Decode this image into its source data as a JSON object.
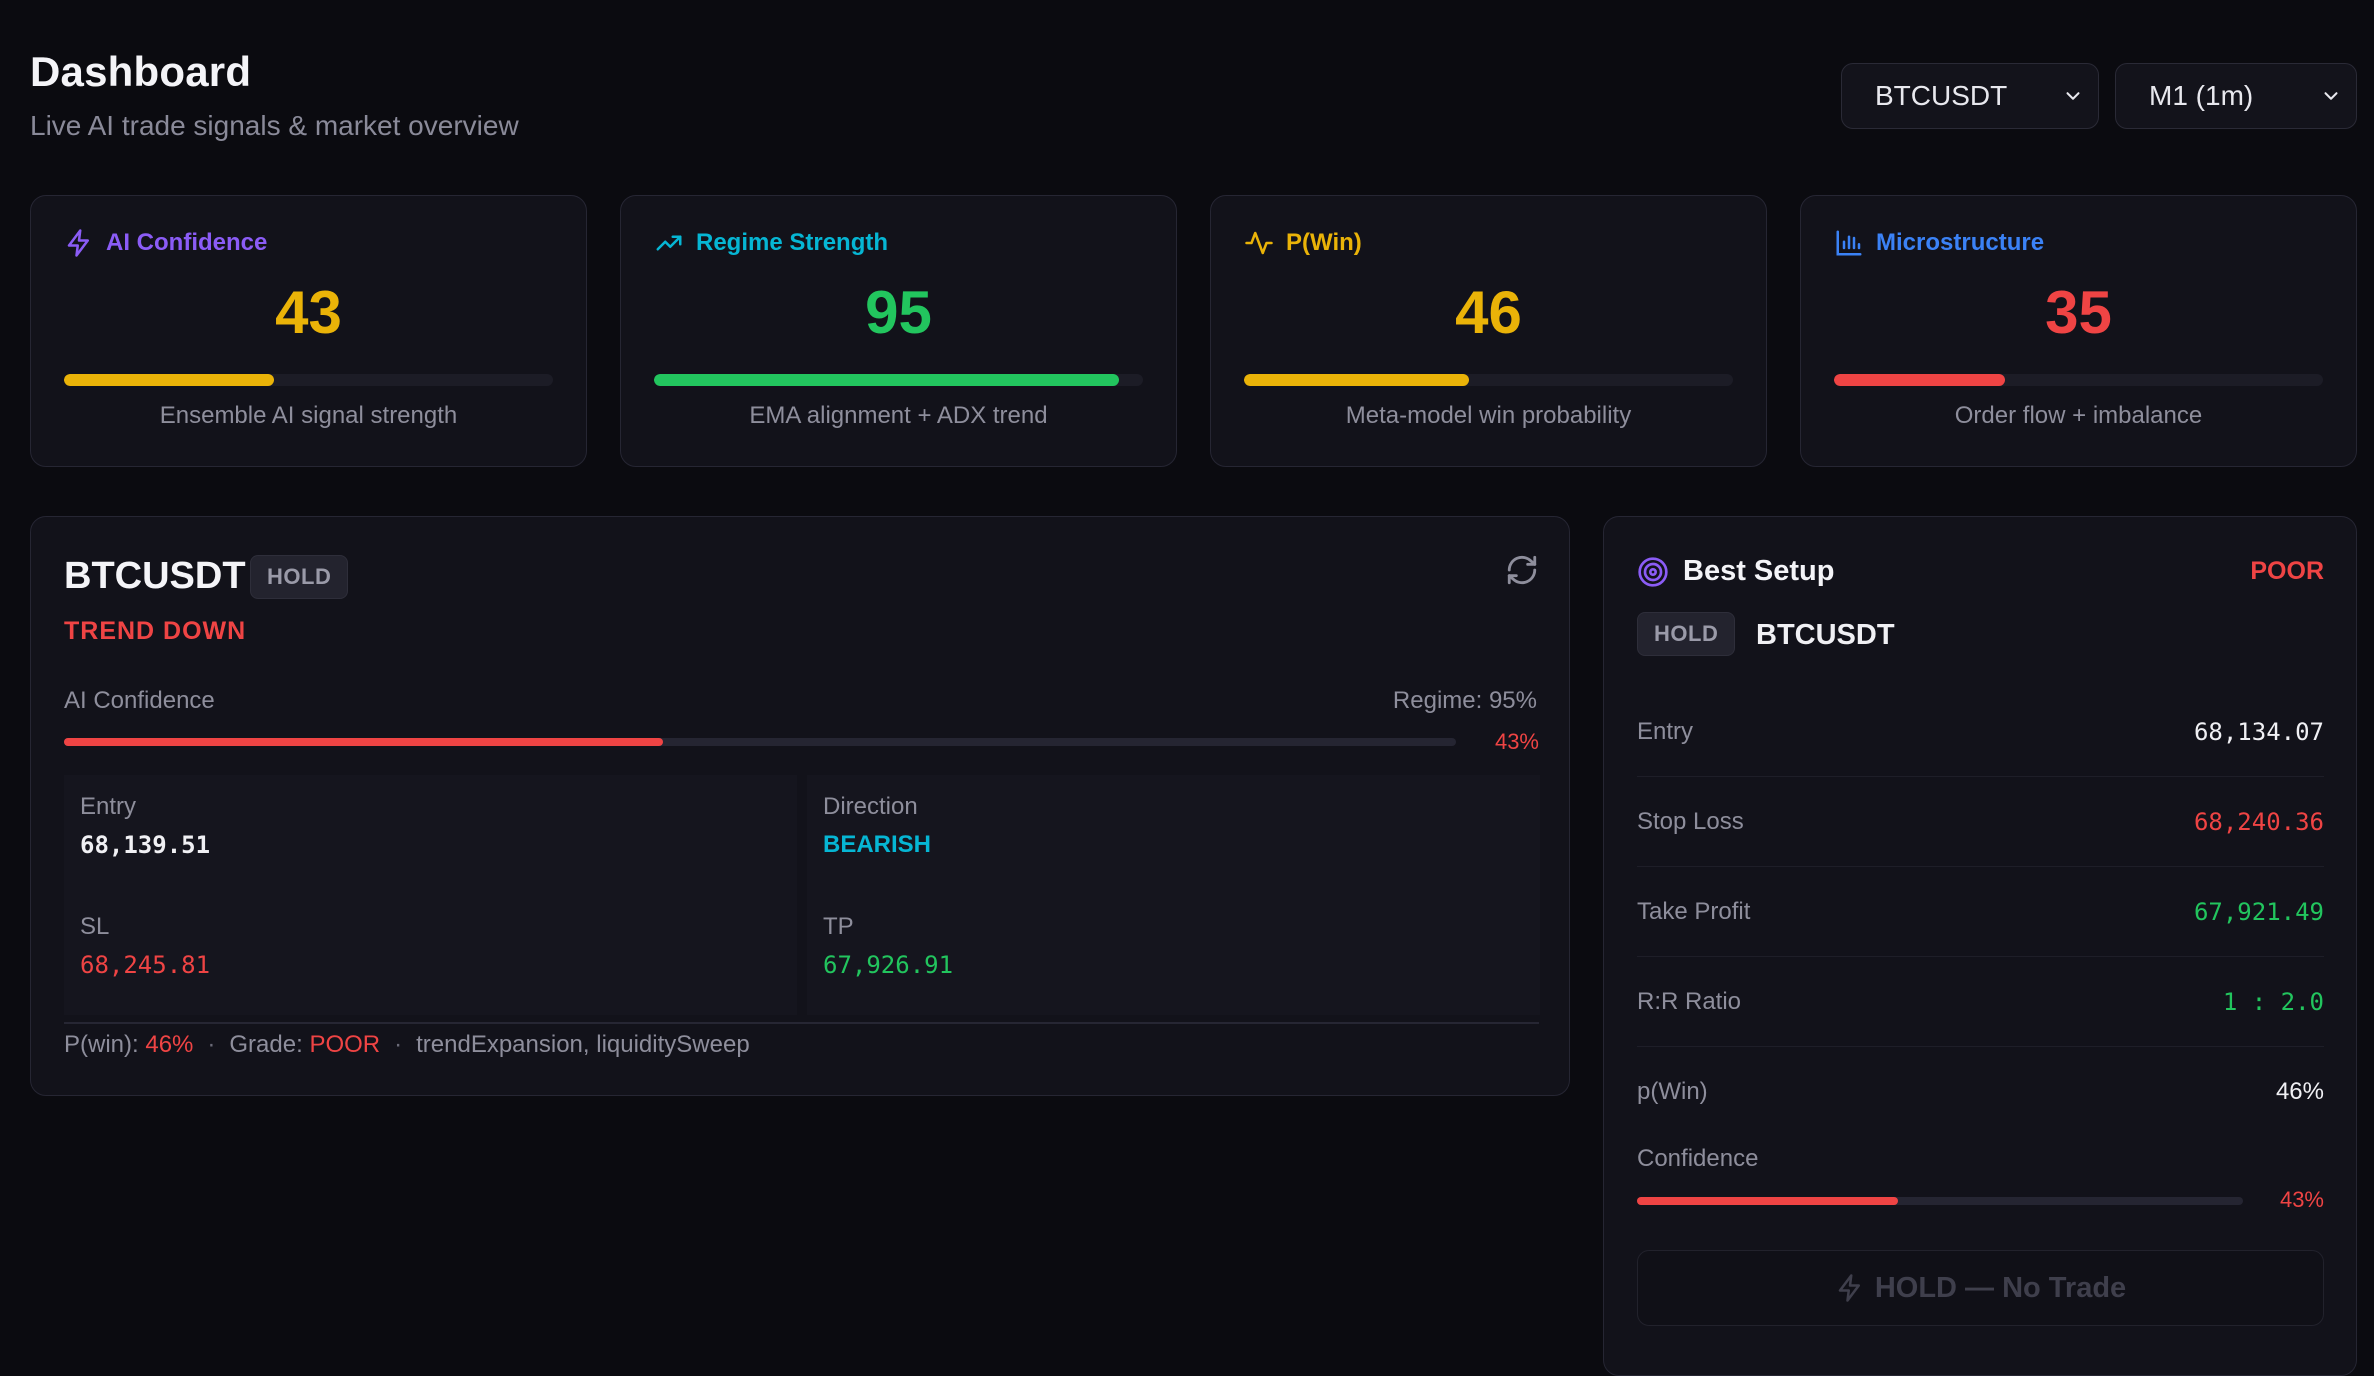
{
  "header": {
    "title": "Dashboard",
    "subtitle": "Live AI trade signals & market overview",
    "symbol_select": "BTCUSDT",
    "timeframe_select": "M1 (1m)"
  },
  "colors": {
    "background": "#0b0b10",
    "card": "#12121a",
    "purple": "#8b5cf6",
    "cyan": "#06b6d4",
    "amber": "#eab308",
    "blue": "#3b82f6",
    "green": "#22c55e",
    "red": "#ef4444"
  },
  "cards": [
    {
      "label": "AI Confidence",
      "icon": "lightning-icon",
      "value": "43",
      "fill_pct": 43,
      "caption": "Ensemble AI signal strength",
      "label_color": "#8b5cf6",
      "value_color": "#eab308",
      "bar_color": "#eab308"
    },
    {
      "label": "Regime Strength",
      "icon": "trending-up-icon",
      "value": "95",
      "fill_pct": 95,
      "caption": "EMA alignment + ADX trend",
      "label_color": "#06b6d4",
      "value_color": "#22c55e",
      "bar_color": "#22c55e"
    },
    {
      "label": "P(Win)",
      "icon": "activity-icon",
      "value": "46",
      "fill_pct": 46,
      "caption": "Meta-model win probability",
      "label_color": "#eab308",
      "value_color": "#eab308",
      "bar_color": "#eab308"
    },
    {
      "label": "Microstructure",
      "icon": "bar-chart-icon",
      "value": "35",
      "fill_pct": 35,
      "caption": "Order flow + imbalance",
      "label_color": "#3b82f6",
      "value_color": "#ef4444",
      "bar_color": "#ef4444"
    }
  ],
  "signal": {
    "symbol": "BTCUSDT",
    "badge": "HOLD",
    "trend": "TREND DOWN",
    "confidence_label": "AI Confidence",
    "regime_label": "Regime: 95%",
    "confidence_pct": "43%",
    "confidence_fill": 43,
    "entry_label": "Entry",
    "entry_value": "68,139.51",
    "direction_label": "Direction",
    "direction_value": "BEARISH",
    "sl_label": "SL",
    "sl_value": "68,245.81",
    "tp_label": "TP",
    "tp_value": "67,926.91",
    "pwin_label": "P(win):",
    "pwin_value": "46%",
    "grade_label": "Grade:",
    "grade_value": "POOR",
    "tags": "trendExpansion, liquiditySweep"
  },
  "best_setup": {
    "title": "Best Setup",
    "grade": "POOR",
    "badge": "HOLD",
    "symbol": "BTCUSDT",
    "rows": [
      {
        "label": "Entry",
        "value": "68,134.07",
        "color": "#f0f0f4"
      },
      {
        "label": "Stop Loss",
        "value": "68,240.36",
        "color": "#ef4444"
      },
      {
        "label": "Take Profit",
        "value": "67,921.49",
        "color": "#22c55e"
      },
      {
        "label": "R:R Ratio",
        "value": "1 : 2.0",
        "color": "#22c55e"
      },
      {
        "label": "p(Win)",
        "value": "46%",
        "color": "#f0f0f4"
      }
    ],
    "confidence_label": "Confidence",
    "confidence_pct": "43%",
    "confidence_fill": 43,
    "action_label": "HOLD — No Trade"
  }
}
